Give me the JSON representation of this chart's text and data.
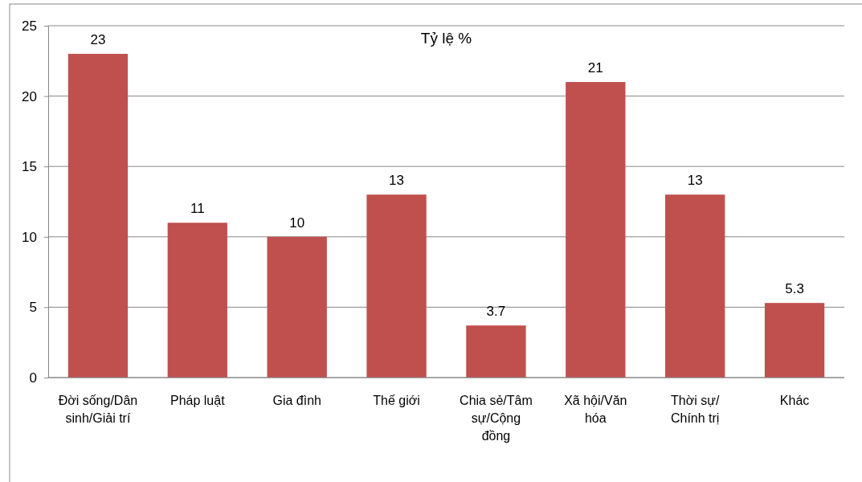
{
  "chart_data": {
    "type": "bar",
    "title": "Tỷ lệ %",
    "categories": [
      "Đời sống/Dân sinh/Giải trí",
      "Pháp luật",
      "Gia đình",
      "Thế giới",
      "Chia sẻ/Tâm sự/Cộng đồng",
      "Xã hội/Văn hóa",
      "Thời sự/Chính trị",
      "Khác"
    ],
    "values": [
      23,
      11,
      10,
      13,
      3.7,
      21,
      13,
      5.3
    ],
    "color": "#c0504d",
    "ylim": [
      0,
      25
    ],
    "yticks": [
      0,
      5,
      10,
      15,
      20,
      25
    ],
    "grid": "y",
    "data_labels": true
  }
}
